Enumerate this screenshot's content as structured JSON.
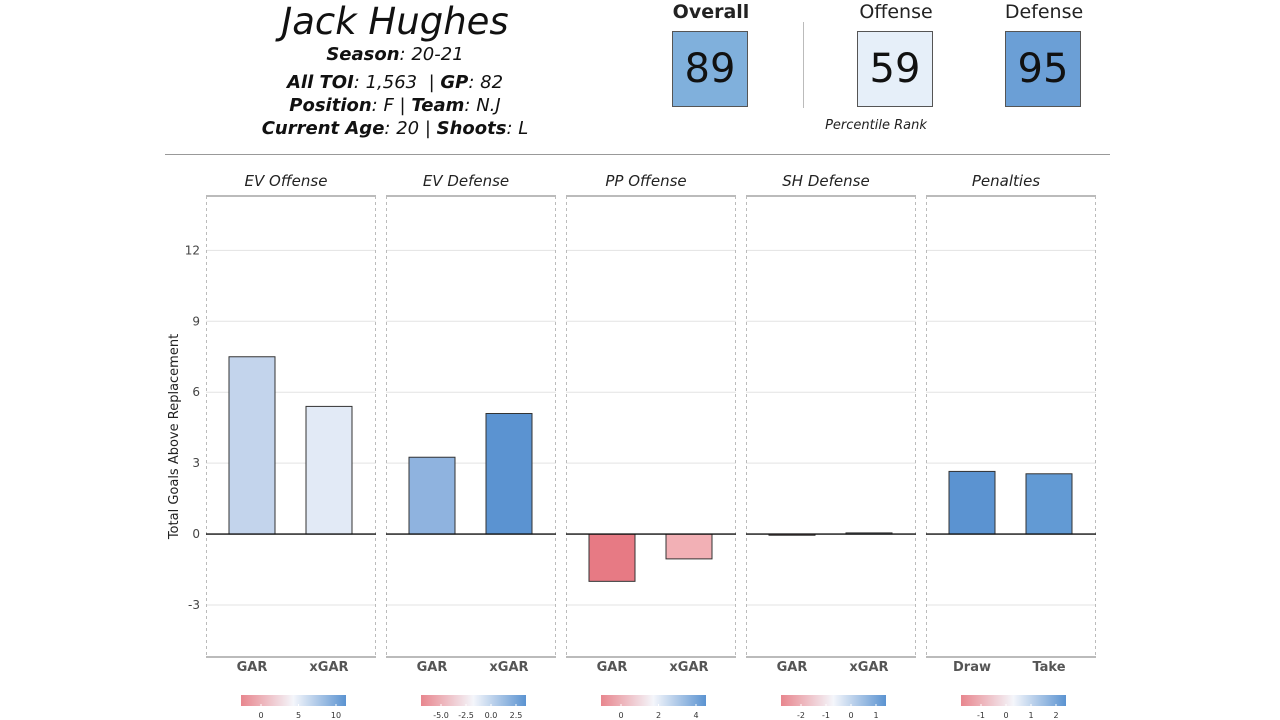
{
  "player": {
    "name": "Jack Hughes",
    "season_label": "Season",
    "season": "20-21",
    "toi_label": "All TOI",
    "toi": "1,563",
    "gp_label": "GP",
    "gp": "82",
    "position_label": "Position",
    "position": "F",
    "team_label": "Team",
    "team": "N.J",
    "age_label": "Current Age",
    "age": "20",
    "shoots_label": "Shoots",
    "shoots": "L"
  },
  "scores": {
    "overall_label": "Overall",
    "overall": "89",
    "offense_label": "Offense",
    "offense": "59",
    "defense_label": "Defense",
    "defense": "95",
    "percentile_caption": "Percentile Rank",
    "colors": {
      "overall": "#80b0dc",
      "offense": "#e6eff9",
      "defense": "#6b9fd6"
    }
  },
  "chart_data": {
    "type": "bar",
    "ylabel": "Total Goals Above Replacement",
    "ylim": [
      -5.2,
      14.3
    ],
    "yticks": [
      -3,
      0,
      3,
      6,
      9,
      12
    ],
    "grid": true,
    "panels": [
      {
        "title": "EV Offense",
        "categories": [
          "GAR",
          "xGAR"
        ],
        "values": [
          7.5,
          5.4
        ],
        "colors": [
          "#c3d4ec",
          "#e2eaf6"
        ],
        "legend_ticks": [
          "0",
          "5",
          "10"
        ]
      },
      {
        "title": "EV Defense",
        "categories": [
          "GAR",
          "xGAR"
        ],
        "values": [
          3.25,
          5.1
        ],
        "colors": [
          "#8fb3df",
          "#5b93d1"
        ],
        "legend_ticks": [
          "-5.0",
          "-2.5",
          "0.0",
          "2.5"
        ]
      },
      {
        "title": "PP Offense",
        "categories": [
          "GAR",
          "xGAR"
        ],
        "values": [
          -2.0,
          -1.05
        ],
        "colors": [
          "#e77a84",
          "#f2b0b5"
        ],
        "legend_ticks": [
          "0",
          "2",
          "4"
        ]
      },
      {
        "title": "SH Defense",
        "categories": [
          "GAR",
          "xGAR"
        ],
        "values": [
          -0.05,
          0.05
        ],
        "colors": [
          "#e8a0a6",
          "#c6d7ee"
        ],
        "legend_ticks": [
          "-2",
          "-1",
          "0",
          "1"
        ]
      },
      {
        "title": "Penalties",
        "categories": [
          "Draw",
          "Take"
        ],
        "values": [
          2.65,
          2.55
        ],
        "colors": [
          "#5b93d1",
          "#629ad4"
        ],
        "legend_ticks": [
          "-1",
          "0",
          "1",
          "2"
        ]
      }
    ]
  }
}
